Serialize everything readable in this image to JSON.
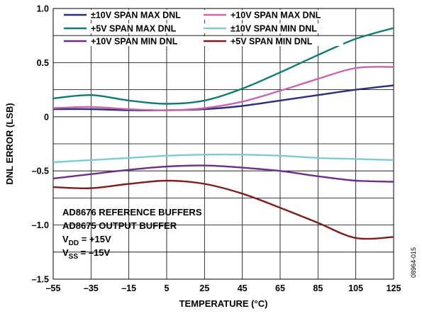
{
  "chart_data": {
    "type": "line",
    "xlabel": "TEMPERATURE (°C)",
    "ylabel": "DNL ERROR (LSB)",
    "xlim": [
      -55,
      125
    ],
    "ylim": [
      -1.5,
      1.0
    ],
    "x_ticks": [
      "–55",
      "–35",
      "–15",
      "5",
      "25",
      "45",
      "65",
      "85",
      "105",
      "125"
    ],
    "y_ticks": [
      "1.0",
      "0.5",
      "0",
      "–0.5",
      "–1.0",
      "–1.5"
    ],
    "y_tick_values": [
      1.0,
      0.5,
      0,
      -0.5,
      -1.0,
      -1.5
    ],
    "grid": true,
    "legend_position": "top-left",
    "x": [
      -55,
      -35,
      -15,
      5,
      25,
      45,
      65,
      85,
      105,
      125
    ],
    "series": [
      {
        "name": "±10V SPAN MAX DNL",
        "color": "#2b2f7a",
        "values": [
          0.07,
          0.07,
          0.06,
          0.06,
          0.07,
          0.1,
          0.15,
          0.2,
          0.25,
          0.29
        ]
      },
      {
        "name": "+10V SPAN MAX DNL",
        "color": "#c766aa",
        "values": [
          0.08,
          0.09,
          0.07,
          0.06,
          0.08,
          0.14,
          0.24,
          0.35,
          0.45,
          0.46
        ]
      },
      {
        "name": "+5V SPAN MAX DNL",
        "color": "#117a70",
        "values": [
          0.17,
          0.2,
          0.15,
          0.12,
          0.15,
          0.26,
          0.41,
          0.57,
          0.72,
          0.82
        ]
      },
      {
        "name": "±10V SPAN MIN DNL",
        "color": "#7ccbd2",
        "values": [
          -0.42,
          -0.4,
          -0.38,
          -0.36,
          -0.35,
          -0.35,
          -0.36,
          -0.38,
          -0.39,
          -0.4
        ]
      },
      {
        "name": "+10V SPAN MIN DNL",
        "color": "#6b2f86",
        "values": [
          -0.57,
          -0.53,
          -0.49,
          -0.46,
          -0.45,
          -0.47,
          -0.5,
          -0.55,
          -0.59,
          -0.6
        ]
      },
      {
        "name": "+5V SPAN MIN DNL",
        "color": "#7f1c1f",
        "values": [
          -0.65,
          -0.66,
          -0.62,
          -0.59,
          -0.62,
          -0.71,
          -0.84,
          -0.98,
          -1.12,
          -1.11
        ]
      }
    ],
    "annotation": {
      "lines": [
        "AD8676 REFERENCE BUFFERS",
        "AD8675 OUTPUT BUFFER"
      ],
      "vdd": {
        "main": "V",
        "sub": "DD",
        "rest": " = +15V"
      },
      "vss": {
        "main": "V",
        "sub": "SS",
        "rest": " = –15V"
      }
    },
    "figure_id": "08964-015"
  }
}
